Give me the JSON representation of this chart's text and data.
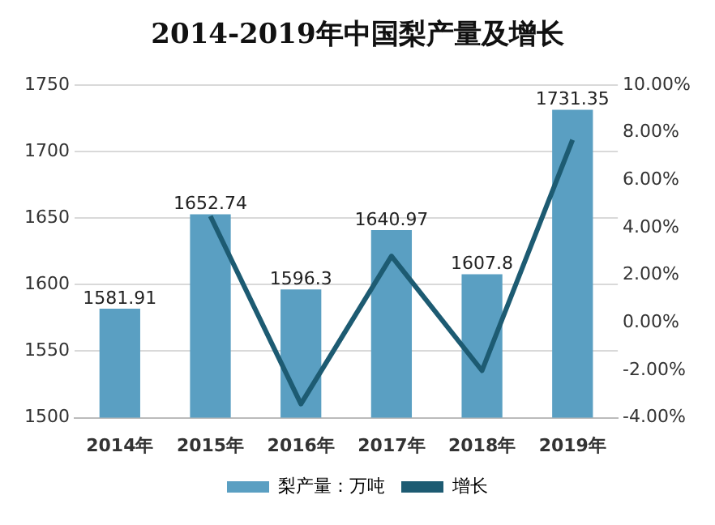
{
  "chart_data": {
    "type": "bar",
    "title": "2014-2019年中国梨产量及增长",
    "categories": [
      "2014年",
      "2015年",
      "2016年",
      "2017年",
      "2018年",
      "2019年"
    ],
    "series": [
      {
        "name": "梨产量：万吨",
        "color": "#5a9fc2",
        "values": [
          1581.91,
          1652.74,
          1596.3,
          1640.97,
          1607.8,
          1731.35
        ],
        "value_labels": [
          "1581.91",
          "1652.74",
          "1596.3",
          "1640.97",
          "1607.8",
          "1731.35"
        ]
      },
      {
        "name": "增长",
        "type": "line",
        "axis": "y2",
        "color": "#1d5b72",
        "values": [
          null,
          4.48,
          -3.42,
          2.8,
          -2.02,
          7.69
        ]
      }
    ],
    "ylim": [
      1500,
      1750
    ],
    "yticks": [
      1500,
      1550,
      1600,
      1650,
      1700,
      1750
    ],
    "y2lim": [
      -4,
      10
    ],
    "y2ticks": [
      {
        "value": -4,
        "label": "-4.00%"
      },
      {
        "value": -2,
        "label": "-2.00%"
      },
      {
        "value": 0,
        "label": "0.00%"
      },
      {
        "value": 2,
        "label": "2.00%"
      },
      {
        "value": 4,
        "label": "4.00%"
      },
      {
        "value": 6,
        "label": "6.00%"
      },
      {
        "value": 8,
        "label": "8.00%"
      },
      {
        "value": 10,
        "label": "10.00%"
      }
    ],
    "grid": "y",
    "legend": "bottom",
    "marker": "none"
  }
}
